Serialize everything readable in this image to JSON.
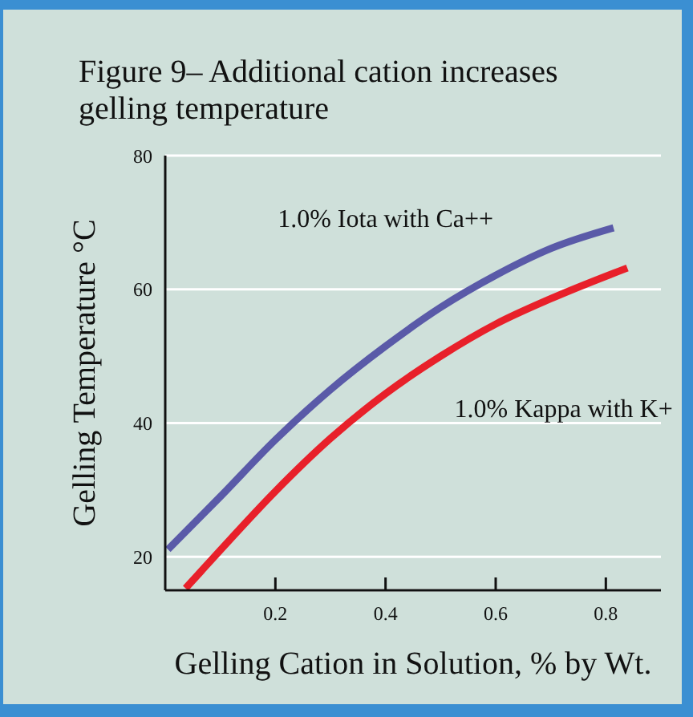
{
  "chart_data": {
    "type": "line",
    "title": "Figure 9– Additional cation increases gelling temperature",
    "xlabel": "Gelling Cation in Solution, % by Wt.",
    "ylabel": "Gelling Temperature °C",
    "xlim": [
      0,
      0.9
    ],
    "xticks": [
      0.2,
      0.4,
      0.6,
      0.8
    ],
    "ylim": [
      15,
      80
    ],
    "yticks": [
      20,
      40,
      60,
      80
    ],
    "grid": "y",
    "legend": false,
    "marker": "none",
    "line_style": "solid",
    "series": [
      {
        "name": "1.0% Iota with Ca++",
        "color": "#5a5aa8",
        "x": [
          0.005,
          0.1,
          0.2,
          0.3,
          0.4,
          0.5,
          0.6,
          0.7,
          0.814
        ],
        "values": [
          21.1,
          29,
          37.5,
          45,
          51.5,
          57.3,
          62.1,
          66.1,
          69.2
        ]
      },
      {
        "name": "1.0% Kappa with K+",
        "color": "#e8202a",
        "x": [
          0.037,
          0.1,
          0.2,
          0.3,
          0.4,
          0.5,
          0.6,
          0.7,
          0.839
        ],
        "values": [
          15.3,
          21,
          29.8,
          37.7,
          44.4,
          50,
          54.8,
          58.6,
          63.2
        ]
      }
    ]
  }
}
